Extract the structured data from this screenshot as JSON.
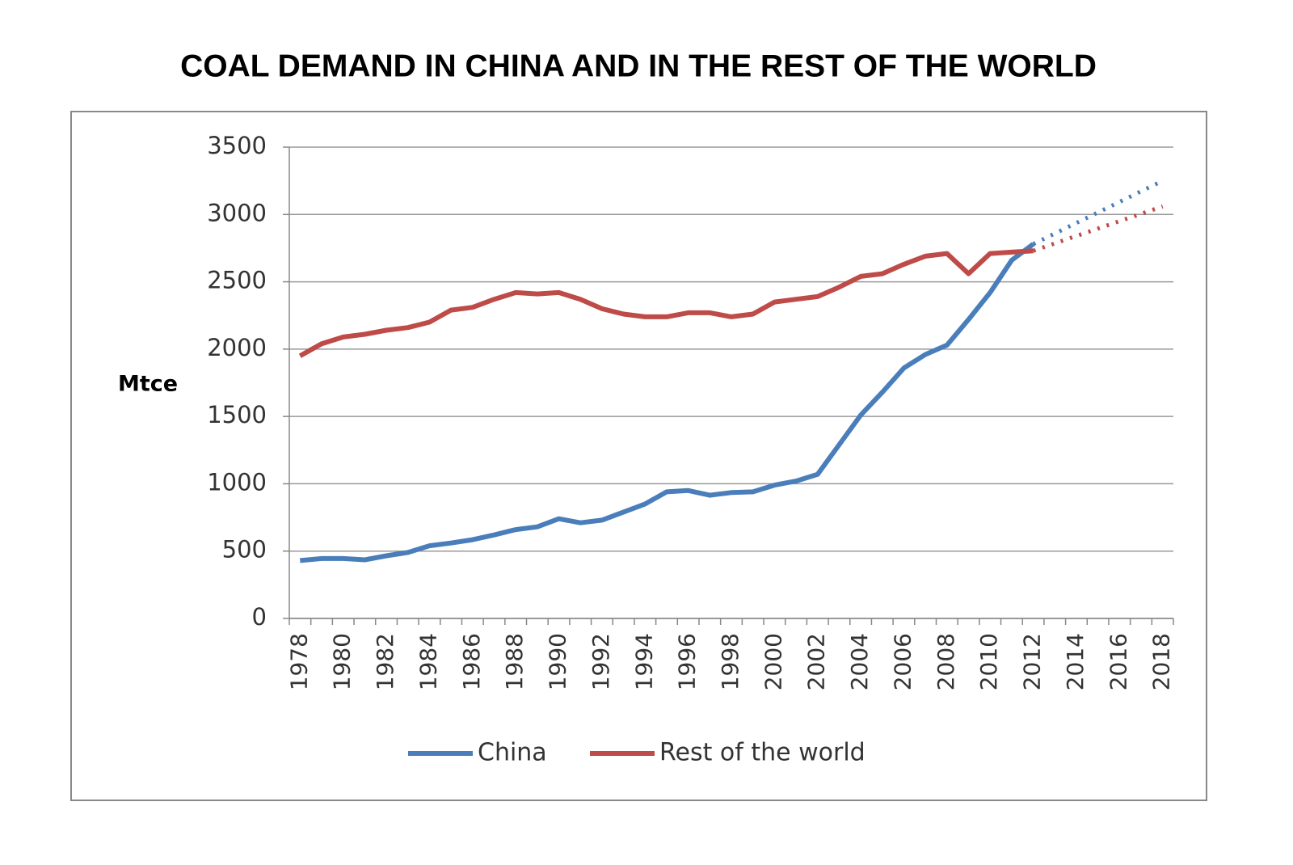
{
  "chart_data": {
    "type": "line",
    "title": "COAL DEMAND IN CHINA AND IN THE REST OF THE WORLD",
    "y_label": "Mtce",
    "categories": [
      "1978",
      null,
      "1980",
      null,
      "1982",
      null,
      "1984",
      null,
      "1986",
      null,
      "1988",
      null,
      "1990",
      null,
      "1992",
      null,
      "1994",
      null,
      "1996",
      null,
      "1998",
      null,
      "2000",
      null,
      "2002",
      null,
      "2004",
      null,
      "2006",
      null,
      "2008",
      null,
      "2010",
      null,
      "2012",
      null,
      "2014",
      null,
      "2016",
      null,
      "2018"
    ],
    "series": [
      {
        "name": "China",
        "color": "#4a7ebb",
        "values": [
          430,
          445,
          445,
          435,
          465,
          490,
          540,
          560,
          585,
          620,
          660,
          680,
          740,
          710,
          730,
          790,
          850,
          940,
          950,
          915,
          935,
          940,
          990,
          1020,
          1070,
          1290,
          1510,
          1680,
          1860,
          1960,
          2030,
          2220,
          2420,
          2660,
          2780,
          2858,
          2937,
          3015,
          3093,
          3172,
          3250
        ]
      },
      {
        "name": "Rest of the world",
        "color": "#be4b48",
        "values": [
          1950,
          2040,
          2090,
          2110,
          2140,
          2160,
          2200,
          2290,
          2310,
          2370,
          2420,
          2410,
          2420,
          2370,
          2300,
          2260,
          2240,
          2240,
          2270,
          2270,
          2240,
          2260,
          2350,
          2370,
          2390,
          2460,
          2540,
          2560,
          2630,
          2690,
          2710,
          2560,
          2710,
          2720,
          2730,
          2785,
          2840,
          2895,
          2950,
          3005,
          3060
        ]
      }
    ],
    "projection_from": "2012",
    "ylim": [
      0,
      3500
    ],
    "yticks": [
      0,
      500,
      1000,
      1500,
      2000,
      2500,
      3000,
      3500
    ],
    "grid": true,
    "legend": "bottom"
  }
}
